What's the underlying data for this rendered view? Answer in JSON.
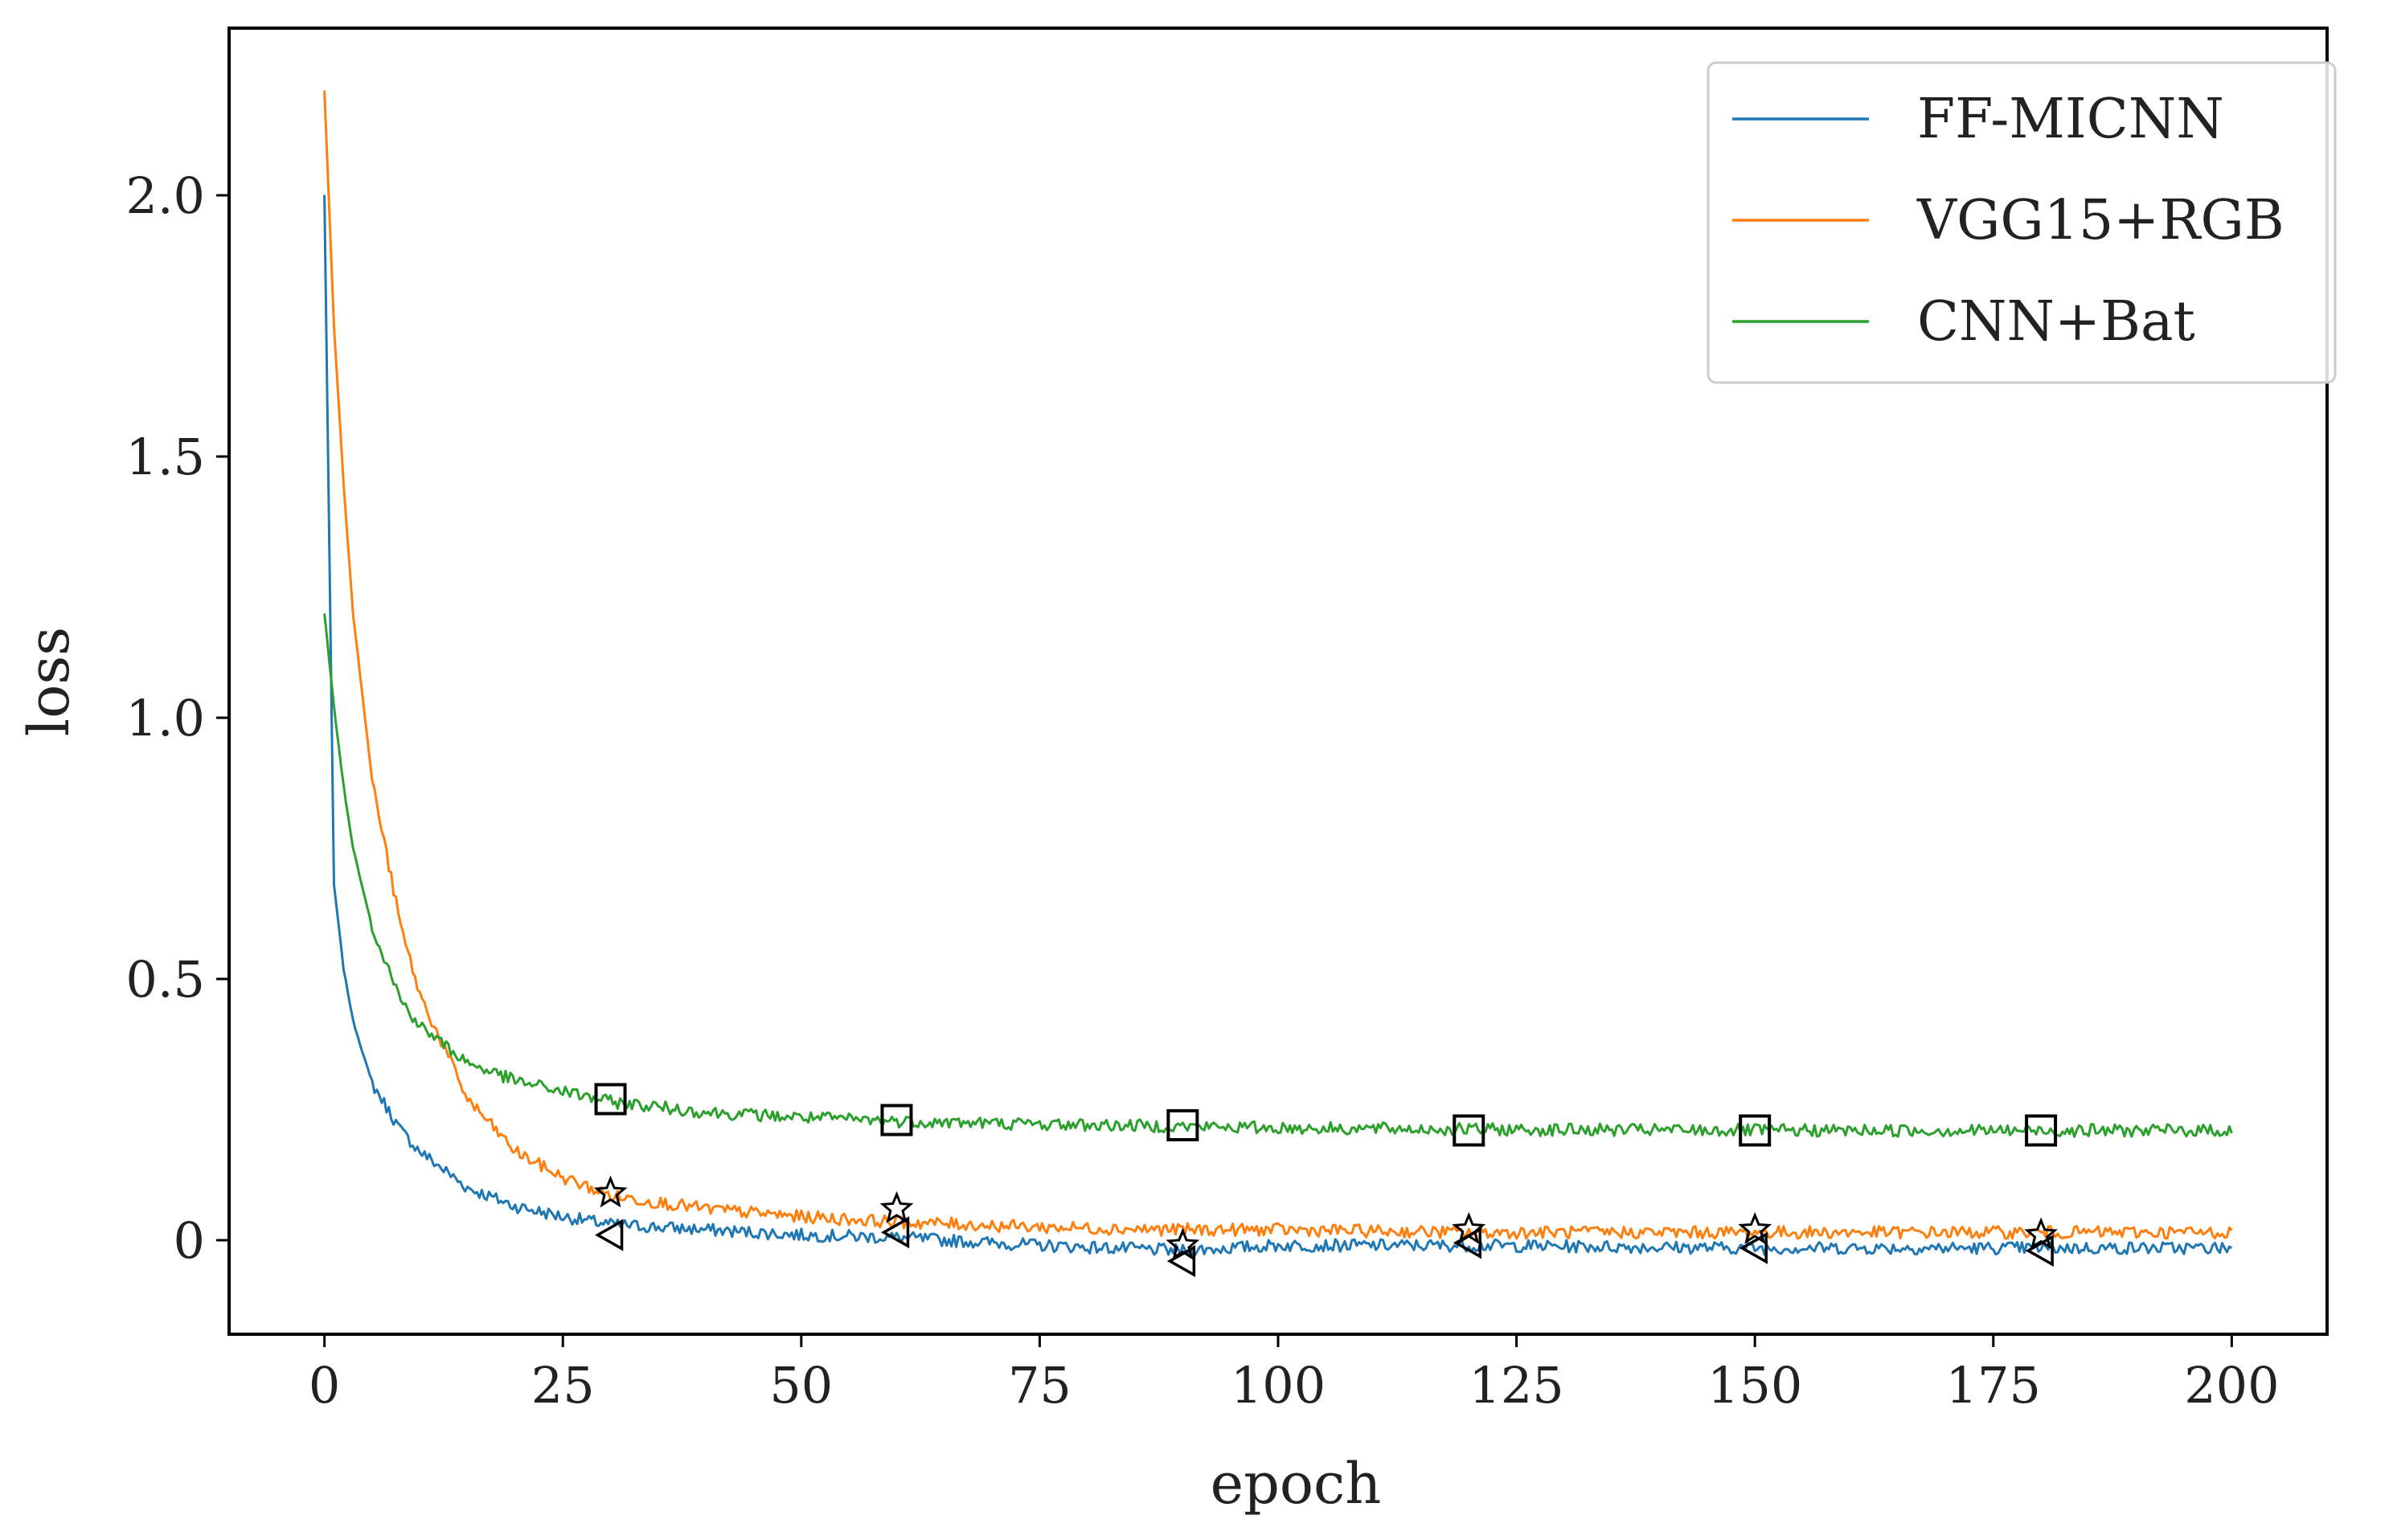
{
  "chart_data": {
    "type": "line",
    "title": "",
    "xlabel": "epoch",
    "ylabel": "loss",
    "xlim": [
      -10,
      210
    ],
    "ylim": [
      -0.18,
      2.32
    ],
    "xticks": [
      0,
      25,
      50,
      75,
      100,
      125,
      150,
      175,
      200
    ],
    "yticks": [
      0,
      0.5,
      1.0,
      1.5,
      2.0
    ],
    "ytick_labels": [
      "0",
      "0.5",
      "1.0",
      "1.5",
      "2.0"
    ],
    "grid": false,
    "legend_position": "top-right",
    "markers_at": [
      30,
      60,
      90,
      120,
      150,
      180
    ],
    "series": [
      {
        "name": "FF-MICNN",
        "color": "#1f77b4",
        "marker": "triangle-left",
        "x": [
          0,
          1,
          2,
          3,
          5,
          8,
          10,
          15,
          20,
          25,
          30,
          40,
          50,
          60,
          75,
          90,
          100,
          120,
          150,
          180,
          200
        ],
        "y": [
          2.0,
          0.68,
          0.52,
          0.42,
          0.3,
          0.21,
          0.17,
          0.1,
          0.065,
          0.045,
          0.03,
          0.02,
          0.01,
          0.005,
          -0.01,
          -0.02,
          -0.01,
          -0.01,
          -0.015,
          -0.015,
          -0.015
        ],
        "marker_values": [
          0.01,
          0.015,
          -0.04,
          -0.005,
          -0.015,
          -0.02
        ]
      },
      {
        "name": "VGG15+RGB",
        "color": "#ff7f0e",
        "marker": "star",
        "x": [
          0,
          1,
          2,
          3,
          5,
          8,
          10,
          15,
          20,
          25,
          30,
          40,
          50,
          60,
          75,
          90,
          100,
          120,
          150,
          180,
          200
        ],
        "y": [
          2.2,
          1.75,
          1.45,
          1.2,
          0.88,
          0.6,
          0.47,
          0.27,
          0.17,
          0.12,
          0.085,
          0.06,
          0.045,
          0.035,
          0.025,
          0.02,
          0.02,
          0.015,
          0.015,
          0.015,
          0.015
        ],
        "marker_values": [
          0.09,
          0.06,
          -0.01,
          0.02,
          0.02,
          0.01
        ]
      },
      {
        "name": "CNN+Bat",
        "color": "#2ca02c",
        "marker": "square",
        "x": [
          0,
          1,
          2,
          3,
          5,
          8,
          10,
          15,
          20,
          25,
          30,
          40,
          50,
          60,
          75,
          90,
          100,
          120,
          150,
          180,
          200
        ],
        "y": [
          1.2,
          1.02,
          0.87,
          0.75,
          0.6,
          0.46,
          0.41,
          0.34,
          0.305,
          0.285,
          0.265,
          0.245,
          0.235,
          0.228,
          0.222,
          0.218,
          0.215,
          0.212,
          0.21,
          0.21,
          0.21
        ],
        "marker_values": [
          0.27,
          0.23,
          0.22,
          0.21,
          0.21,
          0.21
        ]
      }
    ]
  }
}
